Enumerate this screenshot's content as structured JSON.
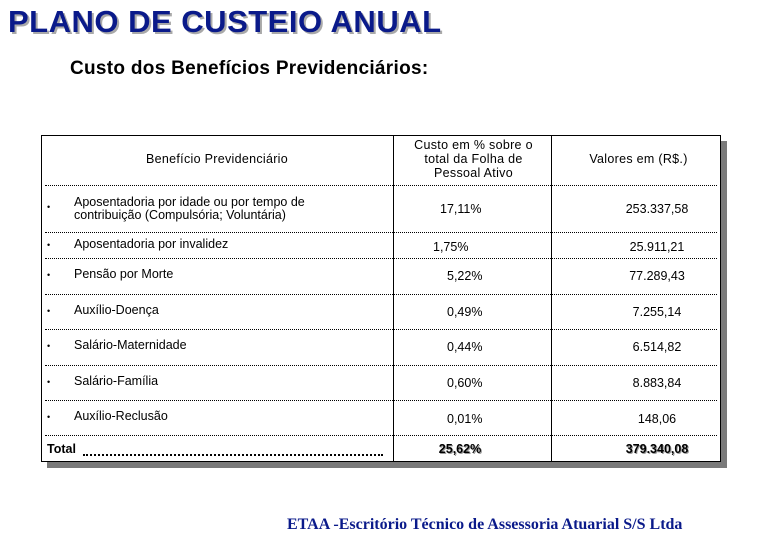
{
  "title": "PLANO DE CUSTEIO ANUAL",
  "subtitle": "Custo dos Benefícios Previdenciários:",
  "table": {
    "headers": {
      "benefit": "Benefício Previdenciário",
      "cost_pct": "Custo em % sobre o total da Folha de Pessoal Ativo",
      "values": "Valores em (R$.)"
    },
    "bullet": "•",
    "rows": [
      {
        "benefit": "Aposentadoria por idade ou por tempo de contribuição (Compulsória; Voluntária)",
        "pct": "17,11%",
        "value": "253.337,58"
      },
      {
        "benefit": "Aposentadoria por invalidez",
        "pct": "1,75%",
        "value": "25.911,21"
      },
      {
        "benefit": "Pensão por Morte",
        "pct": "5,22%",
        "value": "77.289,43"
      },
      {
        "benefit": "Auxílio-Doença",
        "pct": "0,49%",
        "value": "7.255,14"
      },
      {
        "benefit": "Salário-Maternidade",
        "pct": "0,44%",
        "value": "6.514,82"
      },
      {
        "benefit": "Salário-Família",
        "pct": "0,60%",
        "value": "8.883,84"
      },
      {
        "benefit": "Auxílio-Reclusão",
        "pct": "0,01%",
        "value": "148,06"
      }
    ],
    "total": {
      "label": "Total",
      "pct": "25,62%",
      "value": "379.340,08"
    }
  },
  "footer": "ETAA -Escritório Técnico de Assessoria Atuarial S/S Ltda"
}
